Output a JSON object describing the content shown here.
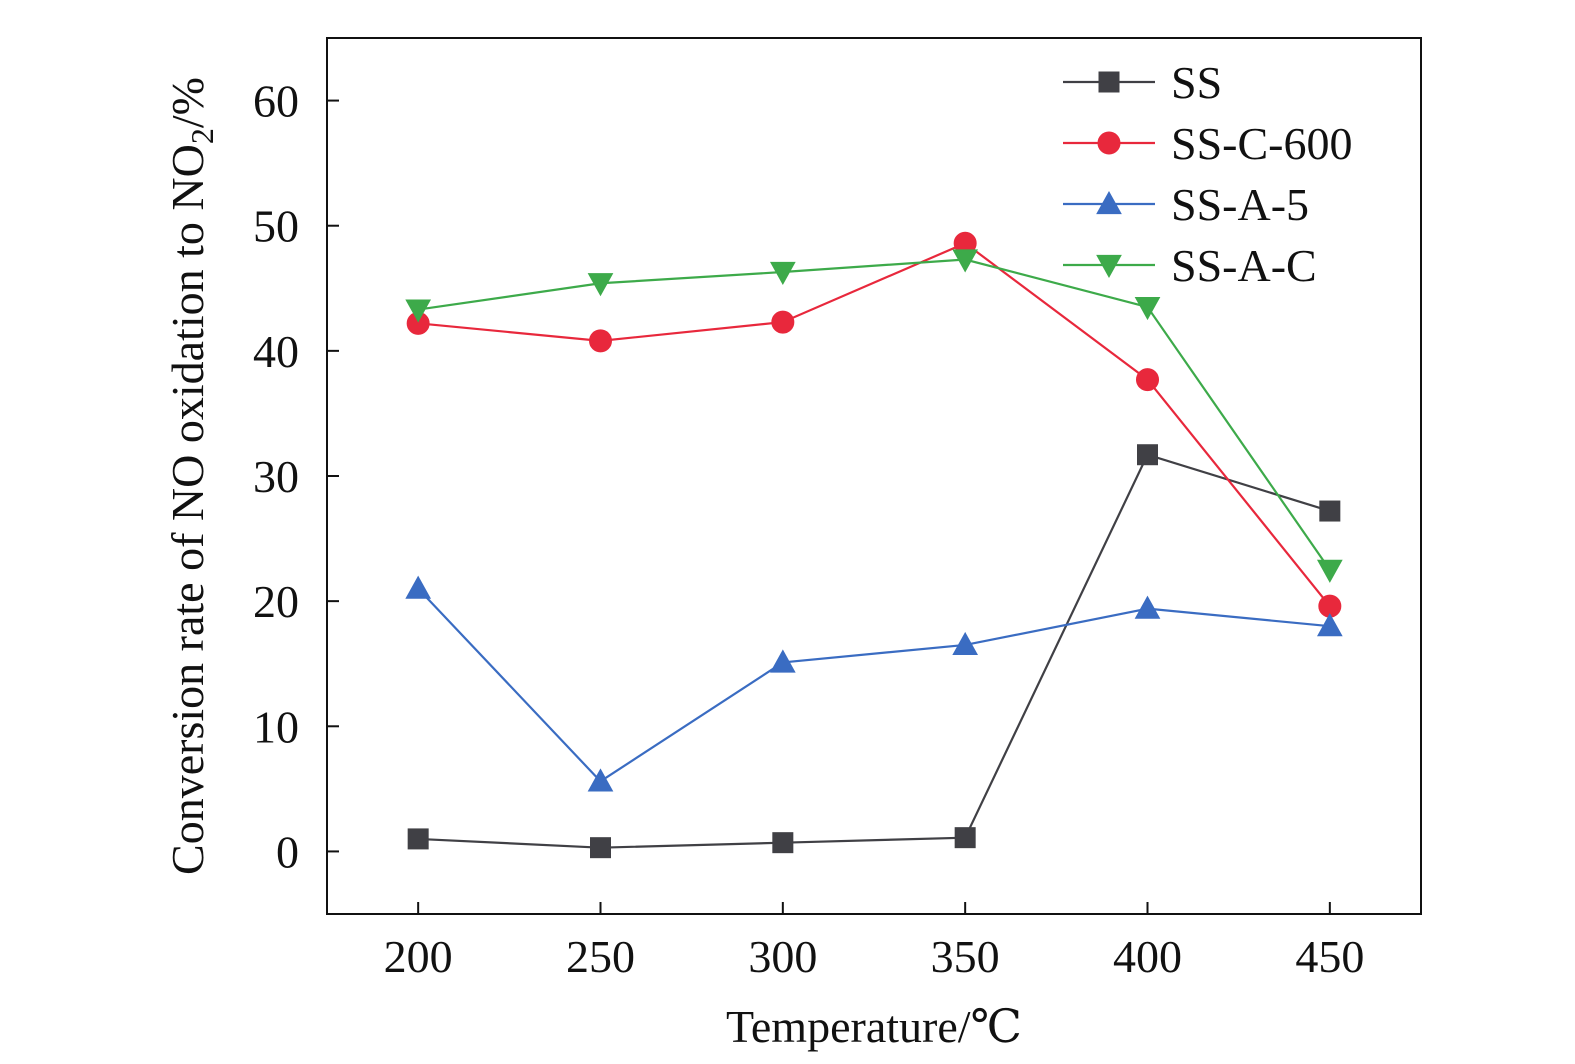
{
  "chart_data": {
    "type": "line",
    "xlabel": "Temperature/℃",
    "ylabel": "Conversion rate of NO oxidation to NO",
    "ylabel_sub": "2",
    "ylabel_suffix": "/%",
    "x": [
      200,
      250,
      300,
      350,
      400,
      450
    ],
    "xlim": [
      175,
      475
    ],
    "ylim": [
      -5,
      65
    ],
    "xticks": [
      200,
      250,
      300,
      350,
      400,
      450
    ],
    "yticks": [
      0,
      10,
      20,
      30,
      40,
      50,
      60
    ],
    "grid": false,
    "legend_position": "top-right",
    "series": [
      {
        "name": "SS",
        "color": "#404045",
        "marker": "square",
        "values": [
          1.0,
          0.3,
          0.7,
          1.1,
          31.7,
          27.2
        ]
      },
      {
        "name": "SS-C-600",
        "color": "#e8283c",
        "marker": "circle",
        "values": [
          42.2,
          40.8,
          42.3,
          48.6,
          37.7,
          19.6
        ]
      },
      {
        "name": "SS-A-5",
        "color": "#3a6cc2",
        "marker": "triangle-up",
        "values": [
          21.0,
          5.6,
          15.1,
          16.5,
          19.4,
          18.0
        ]
      },
      {
        "name": "SS-A-C",
        "color": "#3daa4a",
        "marker": "triangle-down",
        "values": [
          43.3,
          45.4,
          46.3,
          47.3,
          43.5,
          22.5
        ]
      }
    ]
  }
}
